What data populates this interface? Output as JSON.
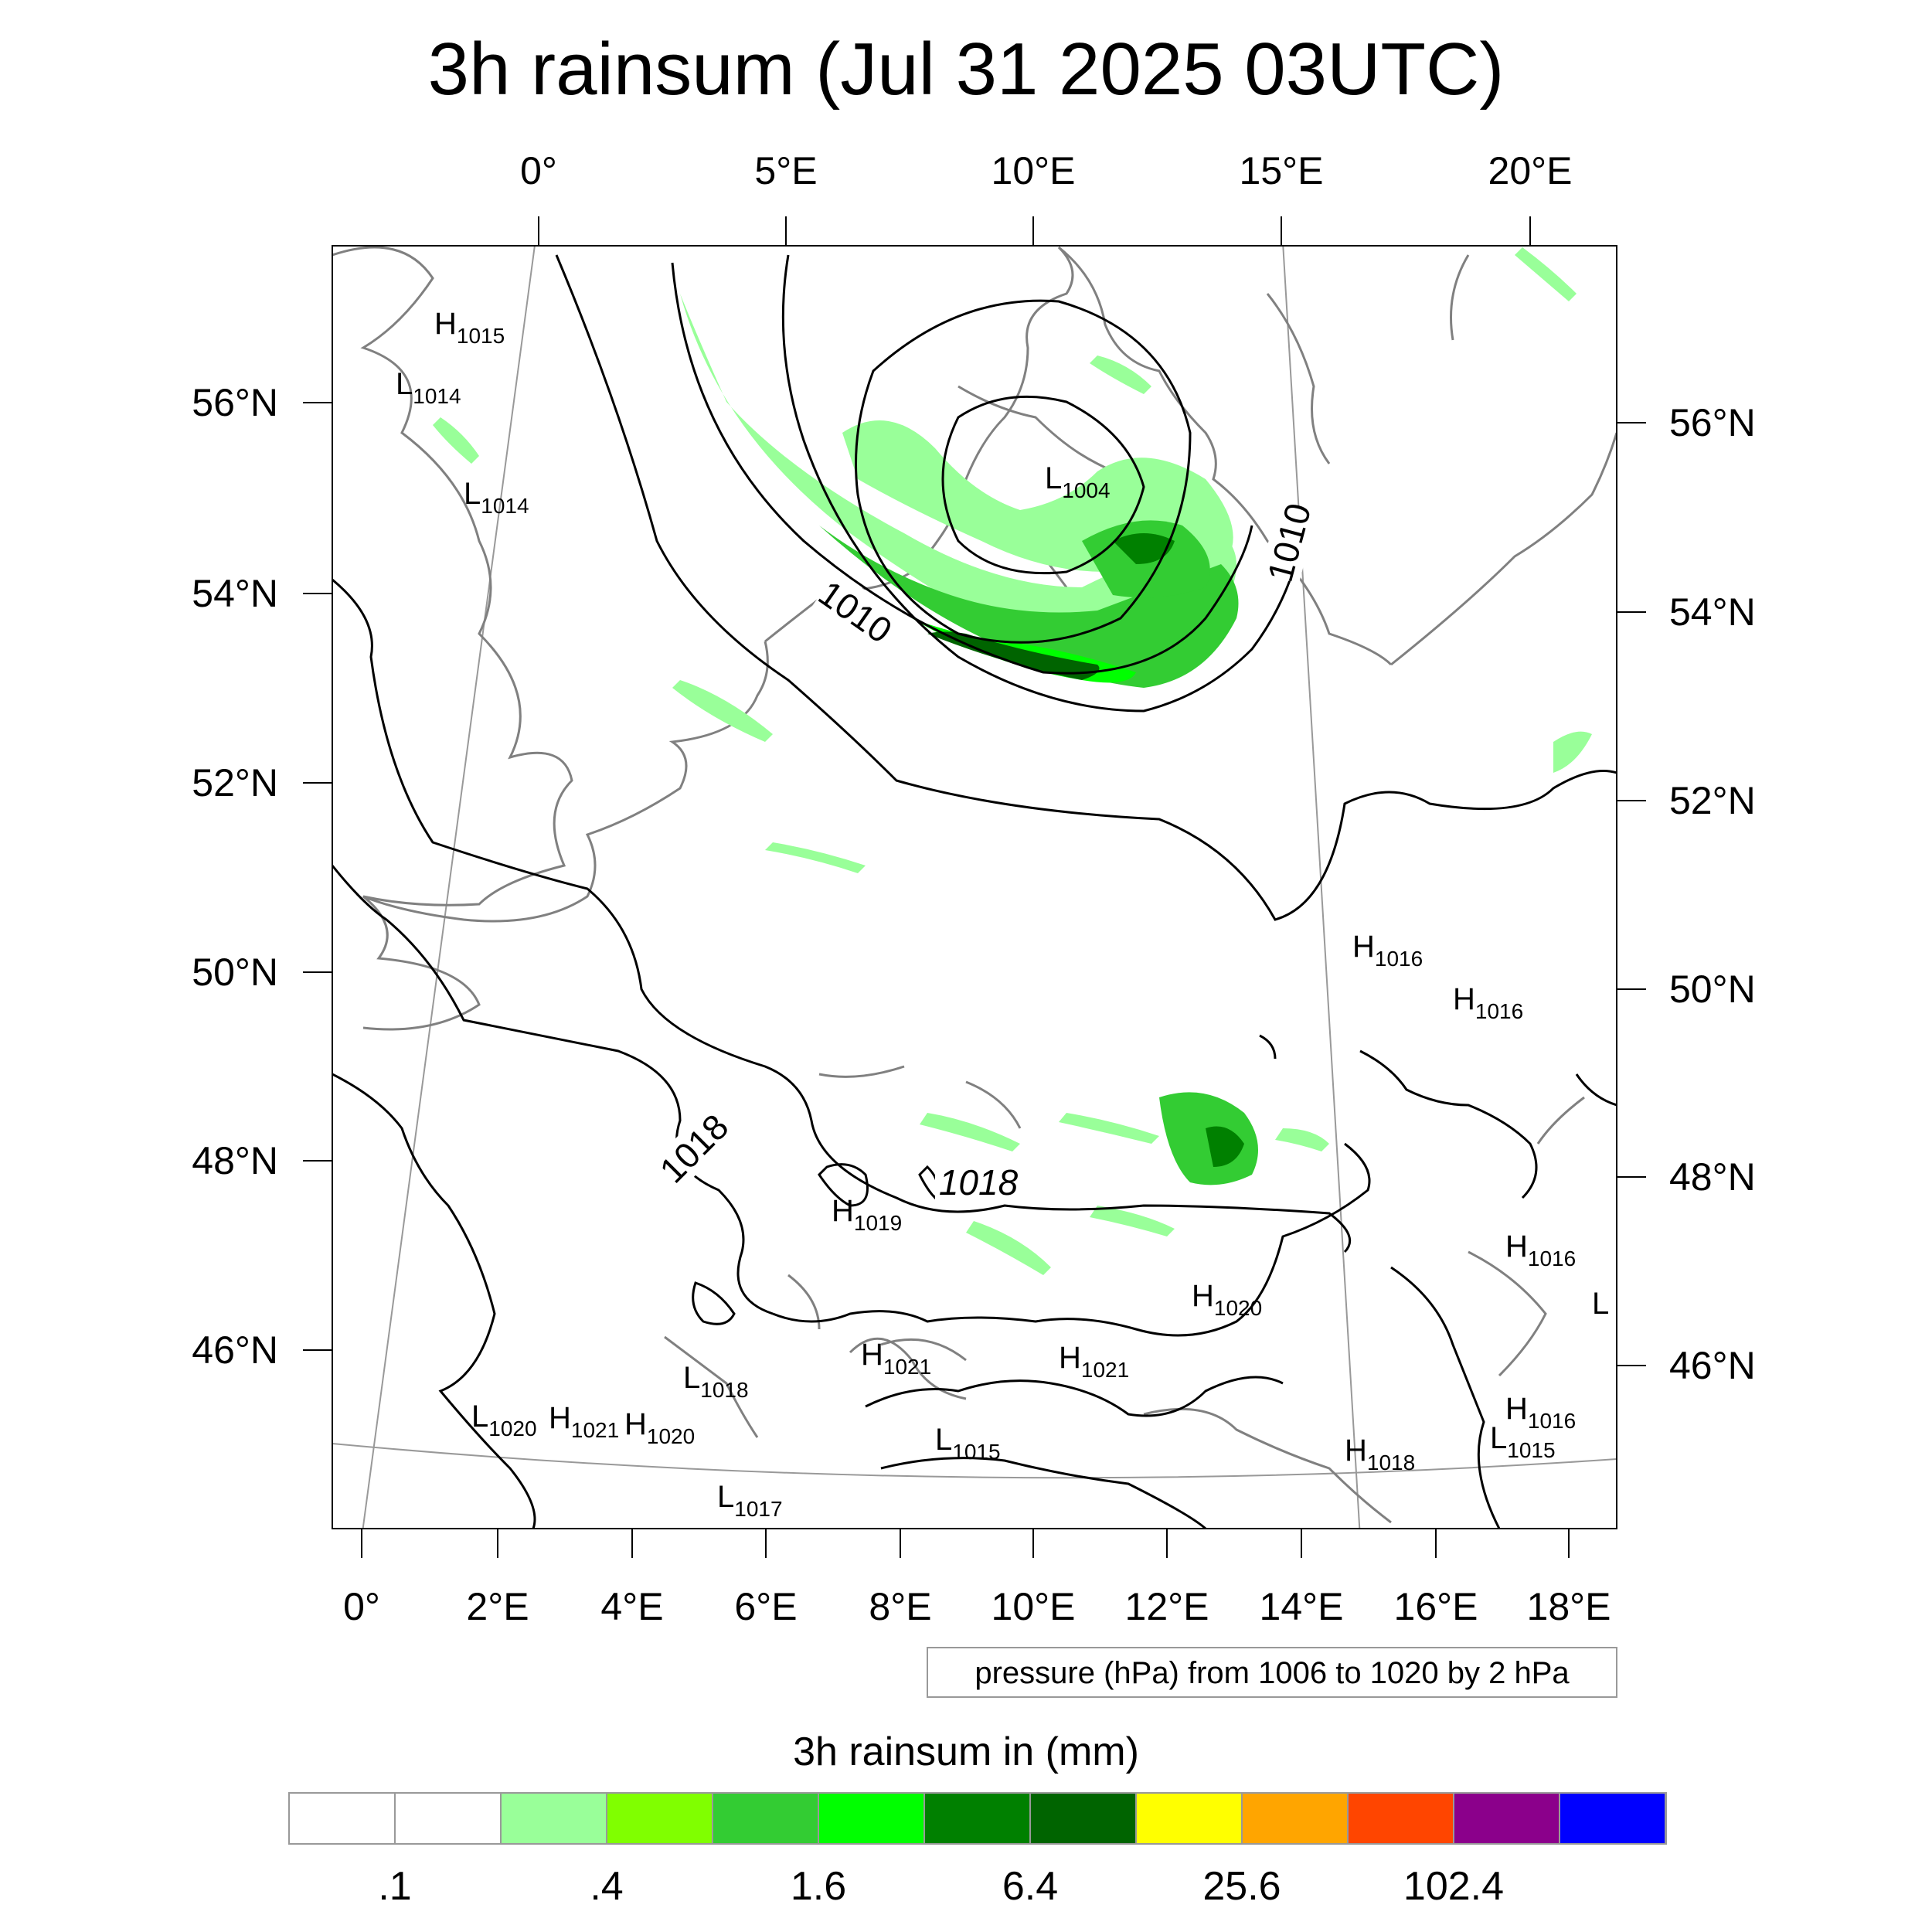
{
  "title": "3h rainsum (Jul 31 2025 03UTC)",
  "top_axis_labels": [
    "0°",
    "5°E",
    "10°E",
    "15°E",
    "20°E"
  ],
  "bottom_axis_labels": [
    "0°",
    "2°E",
    "4°E",
    "6°E",
    "8°E",
    "10°E",
    "12°E",
    "14°E",
    "16°E",
    "18°E"
  ],
  "left_axis_labels": [
    "56°N",
    "54°N",
    "52°N",
    "50°N",
    "48°N",
    "46°N"
  ],
  "right_axis_labels": [
    "56°N",
    "54°N",
    "52°N",
    "50°N",
    "48°N",
    "46°N"
  ],
  "isobar_labels": [
    "1010",
    "1010",
    "1018",
    "1018"
  ],
  "pressure_centers": [
    {
      "letter": "H",
      "value": "1015"
    },
    {
      "letter": "L",
      "value": "1014"
    },
    {
      "letter": "L",
      "value": "1014"
    },
    {
      "letter": "L",
      "value": "1004"
    },
    {
      "letter": "H",
      "value": "1016"
    },
    {
      "letter": "H",
      "value": "1016"
    },
    {
      "letter": "H",
      "value": "1019"
    },
    {
      "letter": "H",
      "value": "1020"
    },
    {
      "letter": "H",
      "value": "1021"
    },
    {
      "letter": "H",
      "value": "1021"
    },
    {
      "letter": "L",
      "value": "1018"
    },
    {
      "letter": "L",
      "value": "1020"
    },
    {
      "letter": "H",
      "value": "1021"
    },
    {
      "letter": "H",
      "value": "1020"
    },
    {
      "letter": "L",
      "value": "1015"
    },
    {
      "letter": "L",
      "value": "1017"
    },
    {
      "letter": "H",
      "value": "1018"
    },
    {
      "letter": "H",
      "value": "1016"
    },
    {
      "letter": "L",
      "value": "1015"
    },
    {
      "letter": "H",
      "value": "1016"
    },
    {
      "letter": "L",
      "value": ""
    }
  ],
  "contour_info": "pressure (hPa) from 1006 to 1020 by 2 hPa",
  "colorbar": {
    "title": "3h rainsum in (mm)",
    "tick_labels": [
      ".1",
      ".4",
      "1.6",
      "6.4",
      "25.6",
      "102.4"
    ],
    "colors": [
      "#ffffff",
      "#ffffff",
      "#99ff99",
      "#80ff00",
      "#33cc33",
      "#00ff00",
      "#008000",
      "#006400",
      "#ffff00",
      "#ffa500",
      "#ff4500",
      "#8b008b",
      "#0000ff"
    ]
  }
}
